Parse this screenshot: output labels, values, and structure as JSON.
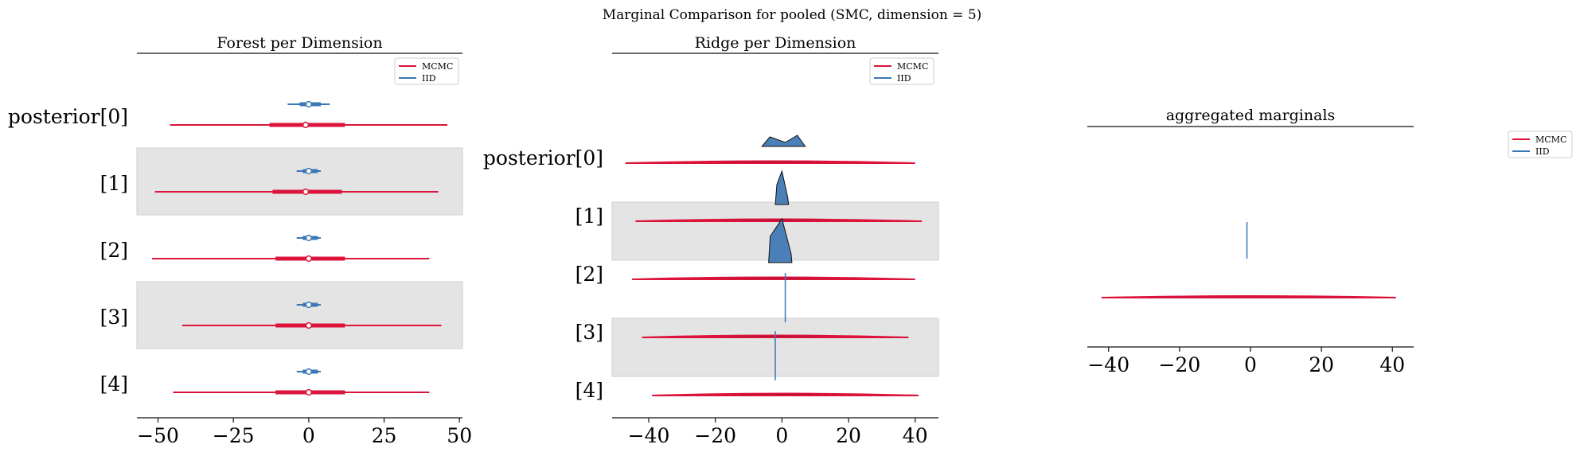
{
  "figure": {
    "suptitle": "Marginal Comparison for pooled (SMC, dimension = 5)"
  },
  "colors": {
    "mcmc": "#dc143c",
    "iid": "#3a78b5",
    "band": "#e4e4e4",
    "band_edge": "#cfcfcf",
    "iid_fill": "#4a80b7",
    "mcmc_dark": "#6b1020"
  },
  "legend_labels": [
    "MCMC",
    "IID"
  ],
  "chart_data": [
    {
      "type": "forest",
      "title": "Forest per Dimension",
      "rows": [
        "posterior[0]",
        "[1]",
        "[2]",
        "[3]",
        "[4]"
      ],
      "xlim": [
        -57,
        51
      ],
      "xticks": [
        -50,
        -25,
        0,
        25,
        50
      ],
      "xtick_labels": [
        "−50",
        "−25",
        "0",
        "25",
        "50"
      ],
      "series": [
        {
          "name": "MCMC",
          "median": [
            -1,
            -1,
            0,
            0,
            0
          ],
          "hdi_50": [
            [
              -13,
              12
            ],
            [
              -12,
              11
            ],
            [
              -11,
              12
            ],
            [
              -11,
              12
            ],
            [
              -11,
              12
            ]
          ],
          "hdi_94": [
            [
              -46,
              46
            ],
            [
              -51,
              43
            ],
            [
              -52,
              40
            ],
            [
              -42,
              44
            ],
            [
              -45,
              40
            ]
          ]
        },
        {
          "name": "IID",
          "median": [
            0,
            0,
            0,
            0,
            0
          ],
          "hdi_50": [
            [
              -3,
              4
            ],
            [
              -2,
              3
            ],
            [
              -2,
              3
            ],
            [
              -2,
              3
            ],
            [
              -2,
              3
            ]
          ],
          "hdi_94": [
            [
              -7,
              7
            ],
            [
              -4,
              4
            ],
            [
              -4,
              4
            ],
            [
              -4,
              4
            ],
            [
              -4,
              4
            ]
          ]
        }
      ]
    },
    {
      "type": "ridge",
      "title": "Ridge per Dimension",
      "rows": [
        "posterior[0]",
        "[1]",
        "[2]",
        "[3]",
        "[4]"
      ],
      "xlim": [
        -51,
        47
      ],
      "xticks": [
        -40,
        -20,
        0,
        20,
        40
      ],
      "xtick_labels": [
        "−40",
        "−20",
        "0",
        "20",
        "40"
      ],
      "series": [
        {
          "name": "MCMC",
          "range": [
            [
              -47,
              40
            ],
            [
              -44,
              42
            ],
            [
              -45,
              40
            ],
            [
              -42,
              38
            ],
            [
              -39,
              41
            ]
          ]
        },
        {
          "name": "IID",
          "range": [
            [
              -6,
              7
            ],
            [
              -2,
              2
            ],
            [
              -4,
              3
            ],
            [
              1,
              1
            ],
            [
              -2,
              -2
            ]
          ]
        }
      ]
    },
    {
      "type": "density",
      "title": "aggregated marginals",
      "xlim": [
        -46,
        46
      ],
      "xticks": [
        -40,
        -20,
        0,
        20,
        40
      ],
      "xtick_labels": [
        "−40",
        "−20",
        "0",
        "20",
        "40"
      ],
      "series": [
        {
          "name": "MCMC",
          "range": [
            -42,
            41
          ]
        },
        {
          "name": "IID",
          "x": -1
        }
      ]
    }
  ]
}
